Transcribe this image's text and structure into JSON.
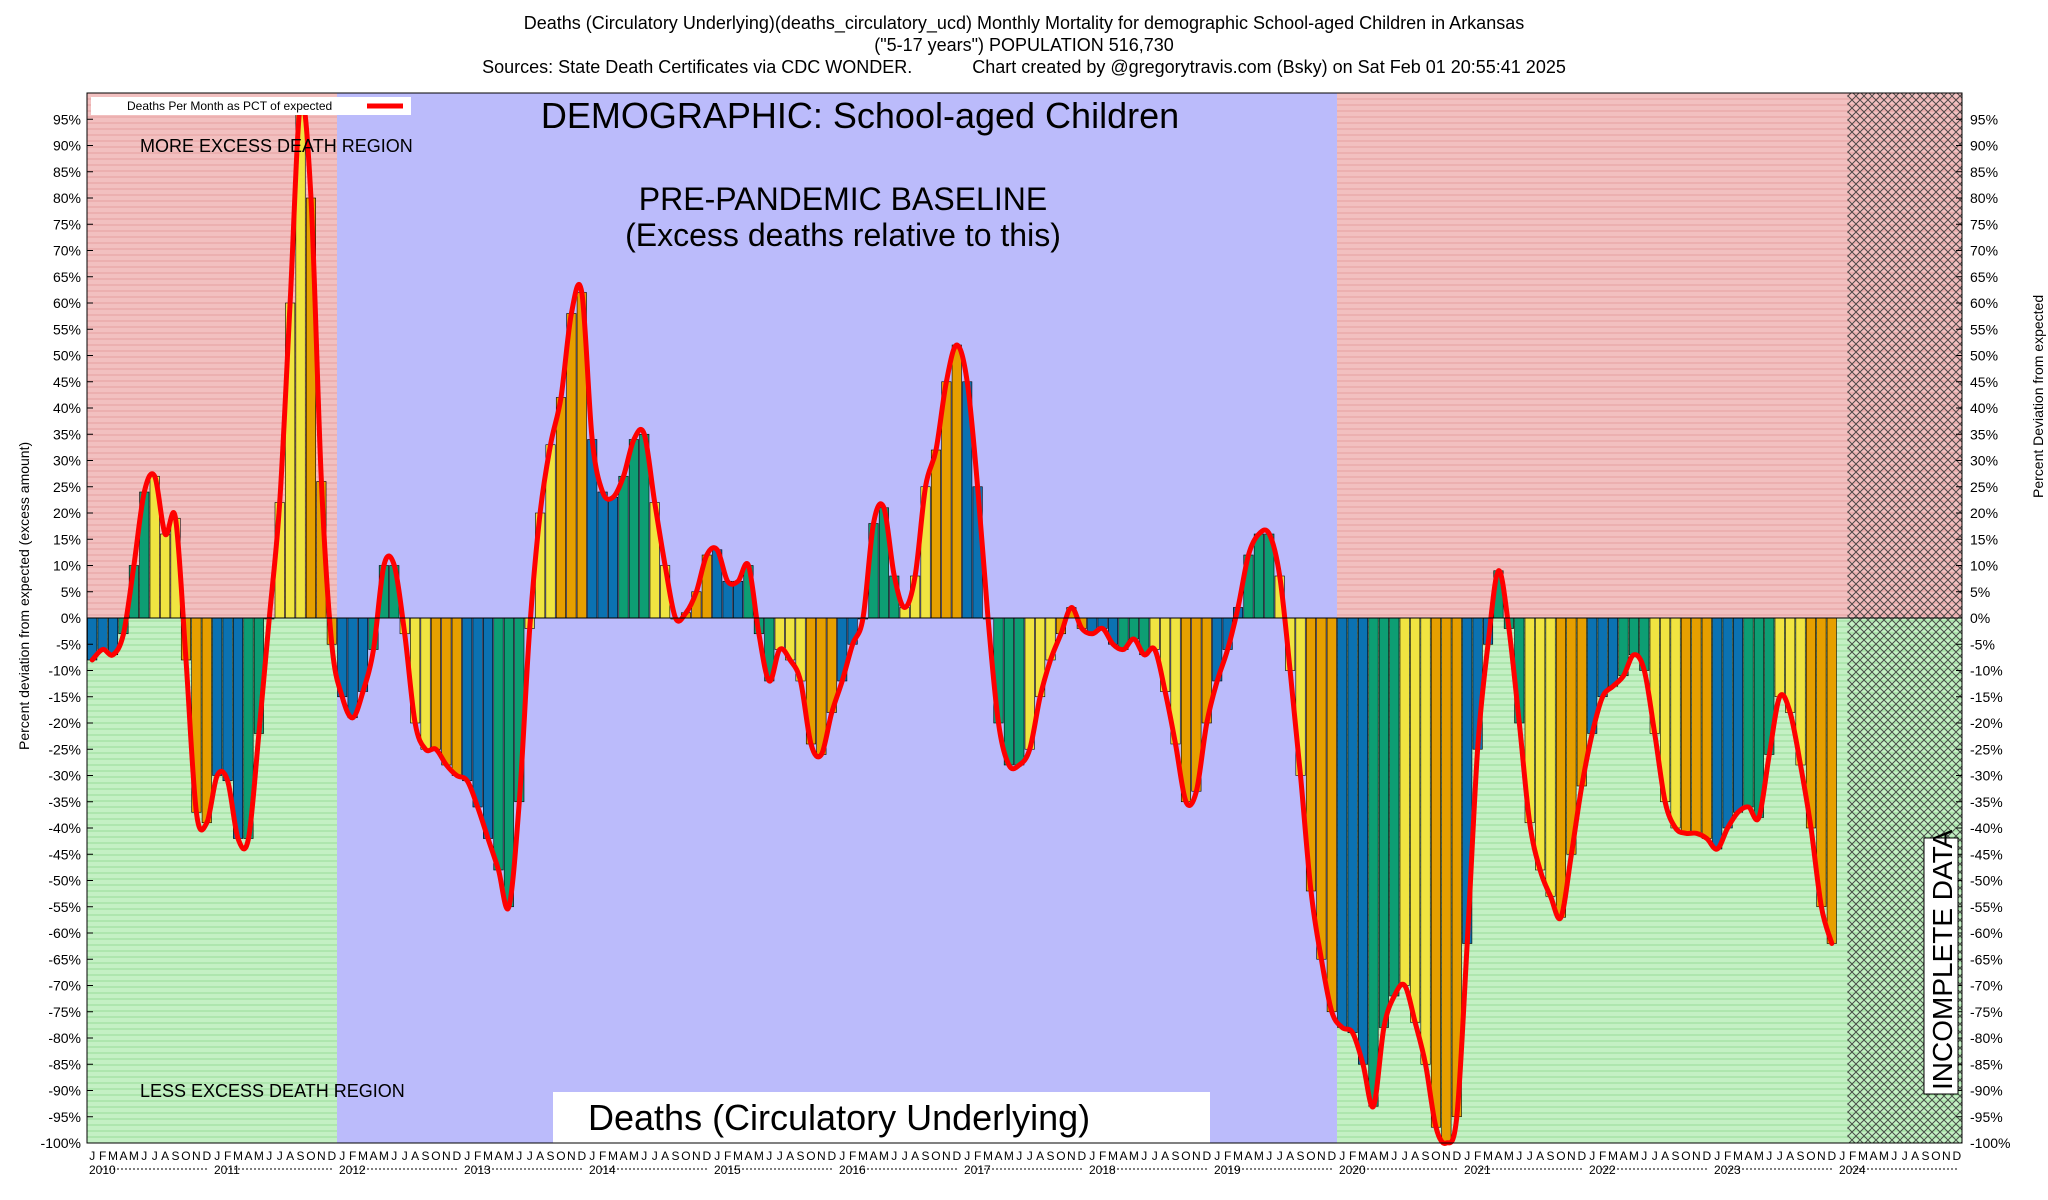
{
  "title_lines": [
    "Deaths (Circulatory Underlying)(deaths_circulatory_ucd) Monthly Mortality for demographic School-aged Children in Arkansas",
    "(\"5-17 years\") POPULATION 516,730",
    "Sources: State Death Certificates via CDC WONDER.            Chart created by @gregorytravis.com (Bsky) on Sat Feb 01 20:55:41 2025"
  ],
  "annotations": {
    "demographic": "DEMOGRAPHIC: School-aged Children",
    "baseline_line1": "PRE-PANDEMIC BASELINE",
    "baseline_line2": "(Excess deaths relative to this)",
    "more_excess": "MORE EXCESS DEATH REGION",
    "less_excess": "LESS EXCESS DEATH REGION",
    "incomplete": "INCOMPLETE DATA",
    "bottom_label": "Deaths (Circulatory Underlying)"
  },
  "legend": {
    "label": "Deaths Per Month as PCT of expected",
    "color": "#ff0000"
  },
  "colors": {
    "more_region": "#f2c0c0",
    "less_region": "#c4f0c4",
    "baseline_region": "#bbbbfb",
    "incomplete_hatch": "#333333",
    "bar_palette": [
      "#0b72b2",
      "#0d9e73",
      "#f0e441",
      "#e69f00"
    ],
    "line": "#ff0000"
  },
  "chart_data": {
    "type": "bar",
    "title": "Deaths (Circulatory Underlying)(deaths_circulatory_ucd) Monthly Mortality for demographic School-aged Children in Arkansas",
    "ylabel_left": "Percent deviation from expected (excess amount)",
    "ylabel_right": "Percent Deviation from expected",
    "ylim": [
      -100,
      100
    ],
    "y_ticks": [
      95,
      90,
      85,
      80,
      75,
      70,
      65,
      60,
      55,
      50,
      45,
      40,
      35,
      30,
      25,
      20,
      15,
      10,
      5,
      0,
      -5,
      -10,
      -15,
      -20,
      -25,
      -30,
      -35,
      -40,
      -45,
      -50,
      -55,
      -60,
      -65,
      -70,
      -75,
      -80,
      -85,
      -90,
      -95,
      -100
    ],
    "month_letters": [
      "J",
      "F",
      "M",
      "A",
      "M",
      "J",
      "J",
      "A",
      "S",
      "O",
      "N",
      "D"
    ],
    "years": [
      "2010",
      "2011",
      "2012",
      "2013",
      "2014",
      "2015",
      "2016",
      "2017",
      "2018",
      "2019",
      "2020",
      "2021",
      "2022",
      "2023",
      "2024"
    ],
    "baseline_period": [
      "2012-01",
      "2019-12"
    ],
    "incomplete_period": [
      "2024-02",
      "2024-12"
    ],
    "grid": true,
    "legend_position": "top-left",
    "series": [
      {
        "name": "Deaths Per Month as PCT of expected",
        "values": [
          -8,
          -6,
          -7,
          -3,
          10,
          24,
          27,
          16,
          19,
          -8,
          -37,
          -39,
          -30,
          -31,
          -42,
          -42,
          -22,
          0,
          22,
          60,
          98,
          80,
          26,
          -5,
          -15,
          -19,
          -14,
          -6,
          10,
          10,
          -3,
          -20,
          -25,
          -25,
          -28,
          -30,
          -31,
          -36,
          -42,
          -48,
          -55,
          -35,
          -2,
          20,
          33,
          42,
          58,
          62,
          34,
          24,
          23,
          27,
          34,
          35,
          22,
          10,
          0,
          1,
          5,
          12,
          13,
          7,
          7,
          10,
          -3,
          -12,
          -6,
          -8,
          -12,
          -24,
          -26,
          -18,
          -12,
          -5,
          0,
          18,
          21,
          8,
          2,
          8,
          25,
          32,
          45,
          52,
          45,
          25,
          0,
          -20,
          -28,
          -28,
          -25,
          -15,
          -8,
          -3,
          2,
          -2,
          -3,
          -2,
          -5,
          -6,
          -4,
          -7,
          -6,
          -14,
          -24,
          -35,
          -33,
          -20,
          -12,
          -6,
          2,
          12,
          16,
          16,
          8,
          -10,
          -30,
          -52,
          -65,
          -75,
          -78,
          -79,
          -85,
          -93,
          -78,
          -72,
          -70,
          -77,
          -85,
          -97,
          -100,
          -95,
          -62,
          -25,
          -5,
          9,
          -2,
          -20,
          -39,
          -48,
          -53,
          -57,
          -45,
          -32,
          -22,
          -15,
          -13,
          -11,
          -7,
          -10,
          -22,
          -35,
          -40,
          -41,
          -41,
          -42,
          -44,
          -40,
          -37,
          -36,
          -38,
          -26,
          -15,
          -18,
          -28,
          -40,
          -55,
          -62
        ]
      }
    ]
  }
}
